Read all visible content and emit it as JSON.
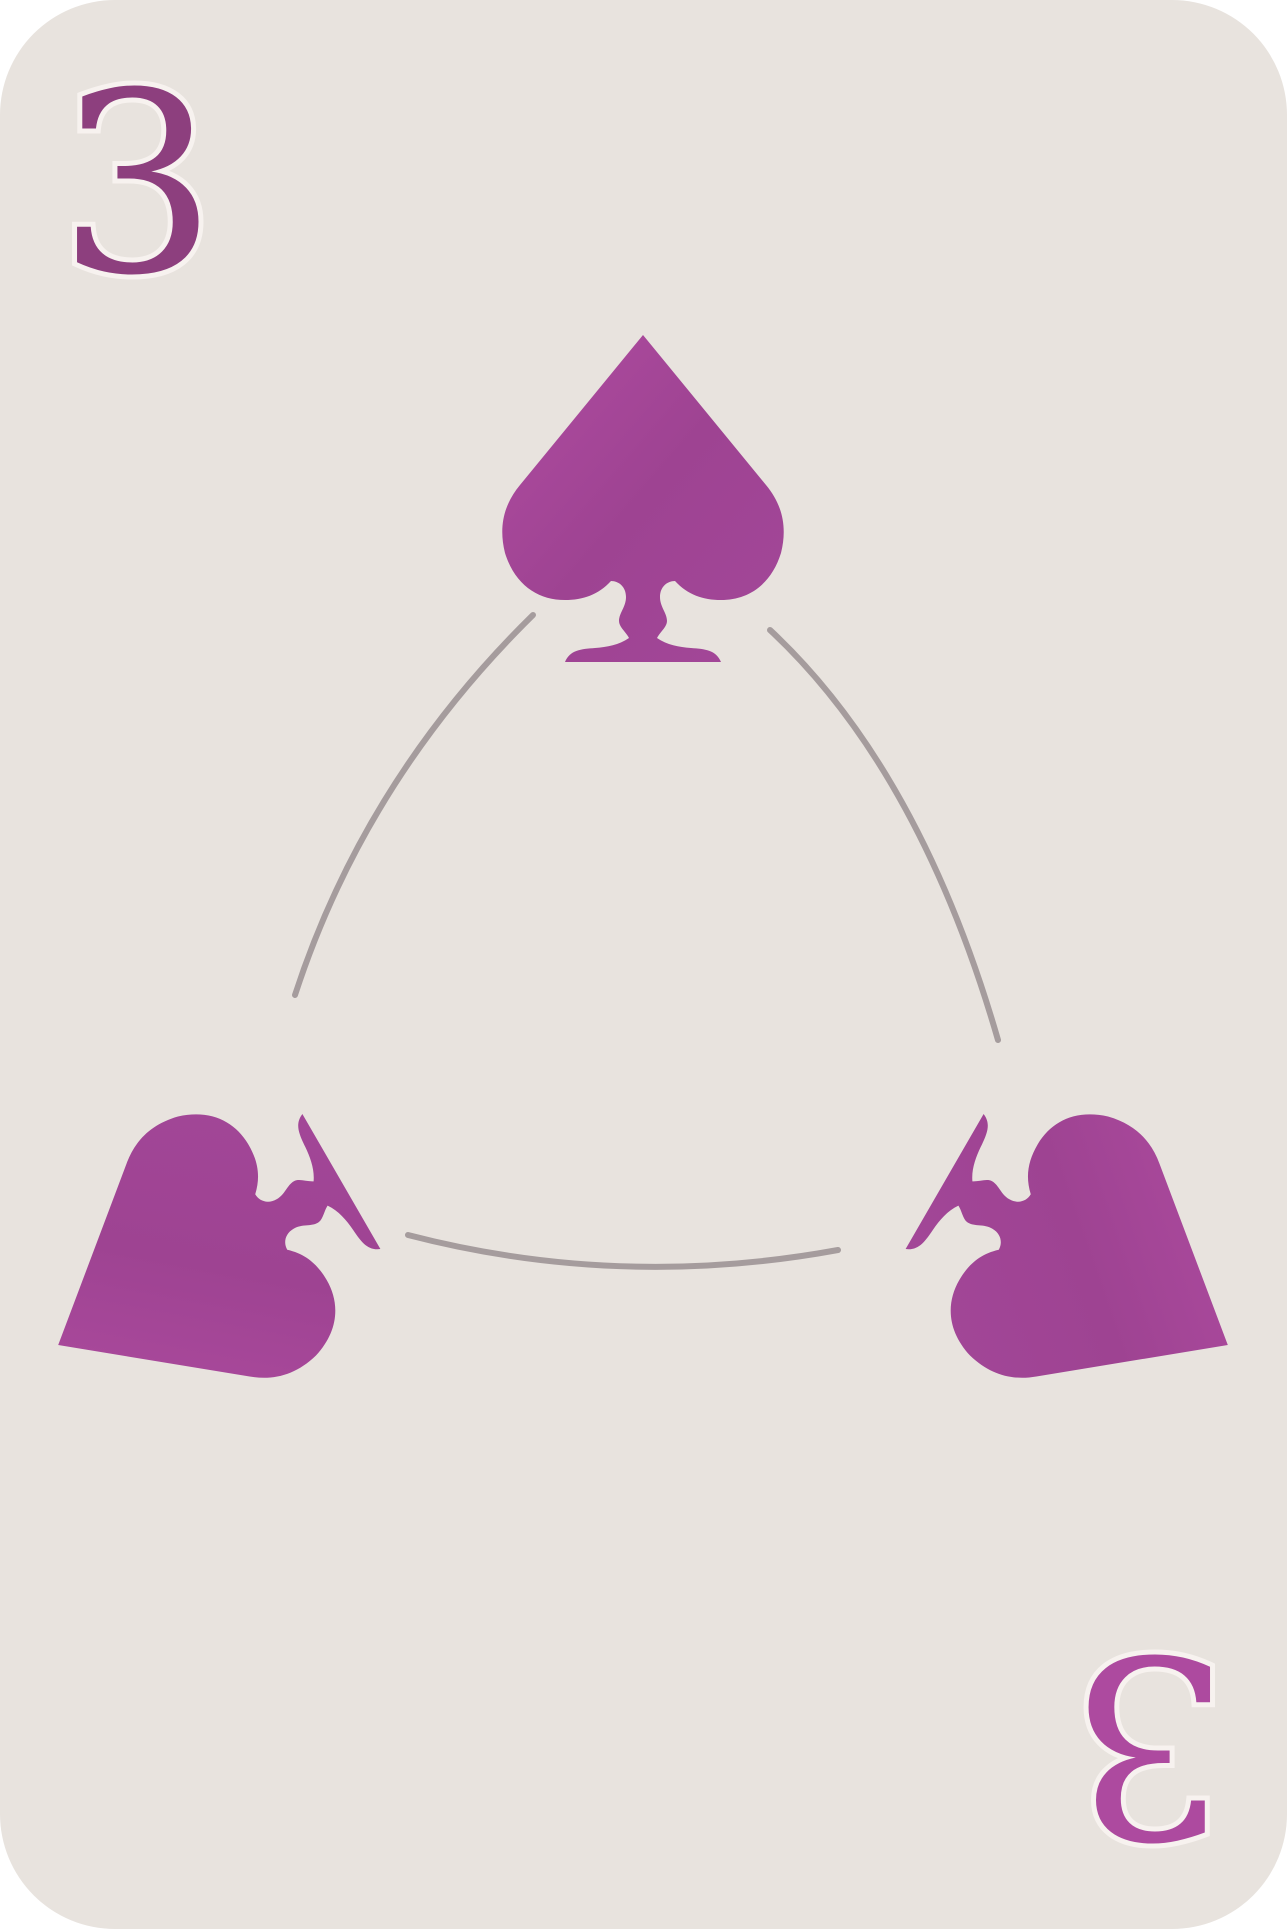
{
  "card": {
    "rank_top": "3",
    "rank_bottom": "3",
    "suit_icon": "spade-icon",
    "pip_count": 3,
    "colors": {
      "background": "#e8e3de",
      "suit": "#a54596",
      "suit_dark": "#7e3a70",
      "rank_top": "#8d3f7e",
      "rank_bottom": "#ad4a9f",
      "connector": "#8f8487"
    }
  }
}
